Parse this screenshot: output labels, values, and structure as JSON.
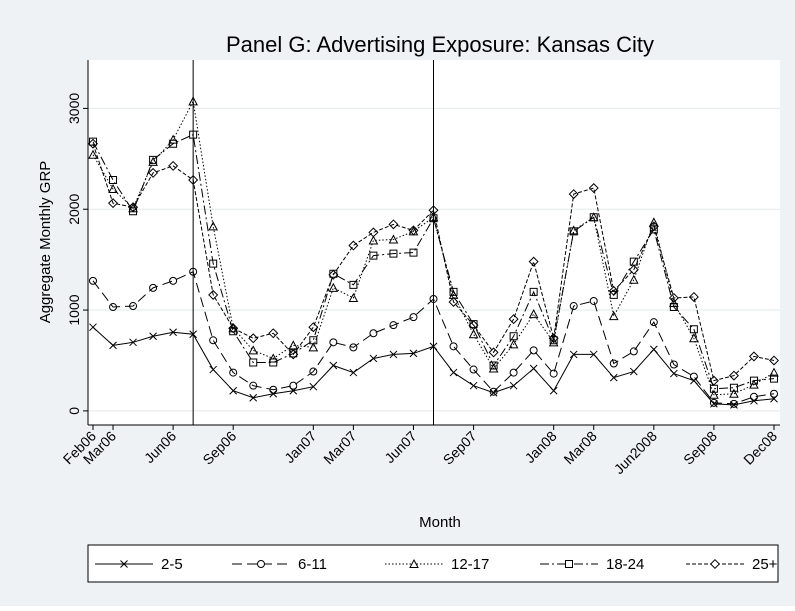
{
  "chart_data": {
    "type": "line",
    "title": "Panel G: Advertising Exposure: Kansas City",
    "x_label": "Month",
    "y_label": "Aggregate Monthly GRP",
    "categories": [
      "Feb06",
      "Mar06",
      null,
      null,
      "Jun06",
      null,
      null,
      "Sep06",
      null,
      null,
      null,
      "Jan07",
      null,
      "Mar07",
      null,
      null,
      "Jun07",
      null,
      null,
      "Sep07",
      null,
      null,
      null,
      "Jan08",
      null,
      "Mar08",
      null,
      null,
      "Jun2008",
      null,
      null,
      "Sep08",
      null,
      null,
      "Dec08"
    ],
    "xlines": [
      5,
      17
    ],
    "ylim": [
      -140,
      3480
    ],
    "yticks": [
      0,
      1000,
      2000,
      3000
    ],
    "grid": true,
    "legend": "bottom",
    "series": [
      {
        "name": "2-5",
        "color": "#000000",
        "dash": "none",
        "marker": "x",
        "values": [
          830,
          650,
          680,
          740,
          780,
          760,
          410,
          200,
          130,
          170,
          200,
          240,
          450,
          380,
          520,
          560,
          570,
          640,
          380,
          250,
          180,
          250,
          420,
          200,
          560,
          560,
          330,
          390,
          610,
          370,
          300,
          70,
          60,
          100,
          120
        ]
      },
      {
        "name": "6-11",
        "color": "#000000",
        "dash": "10 5",
        "marker": "circle",
        "values": [
          1290,
          1030,
          1040,
          1220,
          1290,
          1380,
          700,
          380,
          250,
          210,
          250,
          390,
          680,
          630,
          770,
          850,
          930,
          1110,
          640,
          410,
          190,
          380,
          600,
          370,
          1040,
          1090,
          470,
          590,
          880,
          460,
          340,
          80,
          70,
          140,
          170
        ]
      },
      {
        "name": "12-17",
        "color": "#000000",
        "dash": "1.5 2",
        "marker": "triangle",
        "values": [
          2540,
          2200,
          2010,
          2470,
          2690,
          3070,
          1830,
          820,
          600,
          520,
          650,
          630,
          1220,
          1120,
          1690,
          1700,
          1780,
          1920,
          1150,
          760,
          420,
          660,
          960,
          680,
          1790,
          1920,
          940,
          1300,
          1870,
          1070,
          720,
          160,
          170,
          260,
          380
        ]
      },
      {
        "name": "18-24",
        "color": "#000000",
        "dash": "9 3 2 3",
        "marker": "square",
        "values": [
          2670,
          2290,
          1980,
          2490,
          2650,
          2740,
          1460,
          790,
          480,
          480,
          570,
          700,
          1360,
          1250,
          1540,
          1560,
          1570,
          1910,
          1180,
          860,
          450,
          740,
          1180,
          700,
          1780,
          1920,
          1150,
          1480,
          1800,
          1030,
          810,
          220,
          230,
          300,
          320
        ]
      },
      {
        "name": "25+",
        "color": "#000000",
        "dash": "4 2",
        "marker": "diamond",
        "values": [
          2650,
          2060,
          2020,
          2360,
          2430,
          2290,
          1150,
          820,
          720,
          770,
          560,
          830,
          1350,
          1640,
          1770,
          1850,
          1790,
          1990,
          1080,
          850,
          580,
          910,
          1480,
          720,
          2150,
          2210,
          1190,
          1400,
          1830,
          1120,
          1130,
          300,
          350,
          540,
          500
        ]
      }
    ]
  }
}
